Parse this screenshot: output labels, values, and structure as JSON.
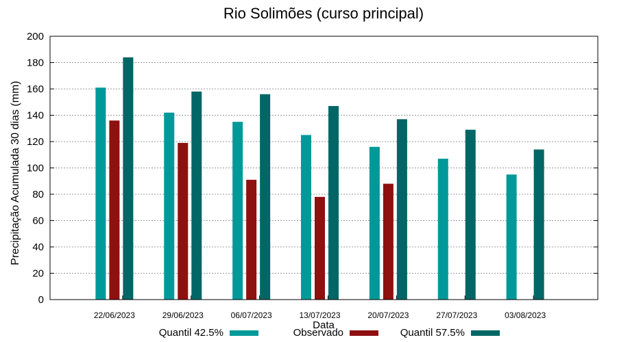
{
  "chart_data": {
    "type": "bar",
    "title": "Rio Solimões (curso principal)",
    "xlabel": "Data",
    "ylabel": "Precipitação Acumulada 30 dias (mm)",
    "ylim": [
      0,
      200
    ],
    "yticks": [
      0,
      20,
      40,
      60,
      80,
      100,
      120,
      140,
      160,
      180,
      200
    ],
    "grid": true,
    "legend_position": "bottom",
    "categories": [
      "22/06/2023",
      "29/06/2023",
      "06/07/2023",
      "13/07/2023",
      "20/07/2023",
      "27/07/2023",
      "03/08/2023"
    ],
    "series": [
      {
        "name": "Quantil 42.5%",
        "color": "#009999",
        "values": [
          161,
          142,
          135,
          125,
          116,
          107,
          95
        ]
      },
      {
        "name": "Observado",
        "color": "#8f1010",
        "values": [
          136,
          119,
          91,
          78,
          88,
          null,
          null
        ]
      },
      {
        "name": "Quantil 57.5%",
        "color": "#006666",
        "values": [
          184,
          158,
          156,
          147,
          137,
          129,
          114
        ]
      }
    ]
  }
}
